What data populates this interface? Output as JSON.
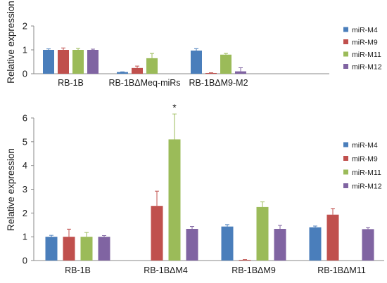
{
  "chart_data": [
    {
      "type": "bar",
      "ylabel": "Relative expression",
      "ylim": [
        0,
        2
      ],
      "yticks": [
        "0",
        "1",
        "2"
      ],
      "categories": [
        "RB-1B",
        "RB-1BΔMeq-miRs",
        "RB-1BΔM9-M2"
      ],
      "error_bars": true,
      "grid": false,
      "legend_position": "right",
      "series": [
        {
          "name": "miR-M4",
          "color": "#4a7ebb",
          "values": [
            1.0,
            0.07,
            0.97
          ],
          "errors": [
            0.04,
            0.01,
            0.08
          ]
        },
        {
          "name": "miR-M9",
          "color": "#c0504d",
          "values": [
            1.0,
            0.24,
            0.03
          ],
          "errors": [
            0.08,
            0.08,
            0.01
          ]
        },
        {
          "name": "miR-M11",
          "color": "#9bbb59",
          "values": [
            1.0,
            0.65,
            0.8
          ],
          "errors": [
            0.06,
            0.2,
            0.05
          ]
        },
        {
          "name": "miR-M12",
          "color": "#8064a2",
          "values": [
            1.0,
            0.0,
            0.1
          ],
          "errors": [
            0.03,
            0.0,
            0.15
          ]
        }
      ]
    },
    {
      "type": "bar",
      "ylabel": "Relative expression",
      "ylim": [
        0,
        6
      ],
      "yticks": [
        "0",
        "1",
        "2",
        "3",
        "4",
        "5",
        "6"
      ],
      "categories": [
        "RB-1B",
        "RB-1BΔM4",
        "RB-1BΔM9",
        "RB-1BΔM11"
      ],
      "error_bars": true,
      "grid": false,
      "legend_position": "right",
      "annotations": [
        {
          "text": "*",
          "category": "RB-1BΔM4",
          "series": "miR-M11"
        }
      ],
      "series": [
        {
          "name": "miR-M4",
          "color": "#4a7ebb",
          "values": [
            1.0,
            0.0,
            1.43,
            1.4
          ],
          "errors": [
            0.06,
            0.0,
            0.08,
            0.05
          ]
        },
        {
          "name": "miR-M9",
          "color": "#c0504d",
          "values": [
            1.0,
            2.3,
            0.03,
            1.93
          ],
          "errors": [
            0.32,
            0.62,
            0.01,
            0.26
          ]
        },
        {
          "name": "miR-M11",
          "color": "#9bbb59",
          "values": [
            1.0,
            5.1,
            2.25,
            0.0
          ],
          "errors": [
            0.18,
            1.07,
            0.22,
            0.0
          ]
        },
        {
          "name": "miR-M12",
          "color": "#8064a2",
          "values": [
            1.0,
            1.33,
            1.33,
            1.32
          ],
          "errors": [
            0.05,
            0.1,
            0.15,
            0.07
          ]
        }
      ]
    }
  ]
}
